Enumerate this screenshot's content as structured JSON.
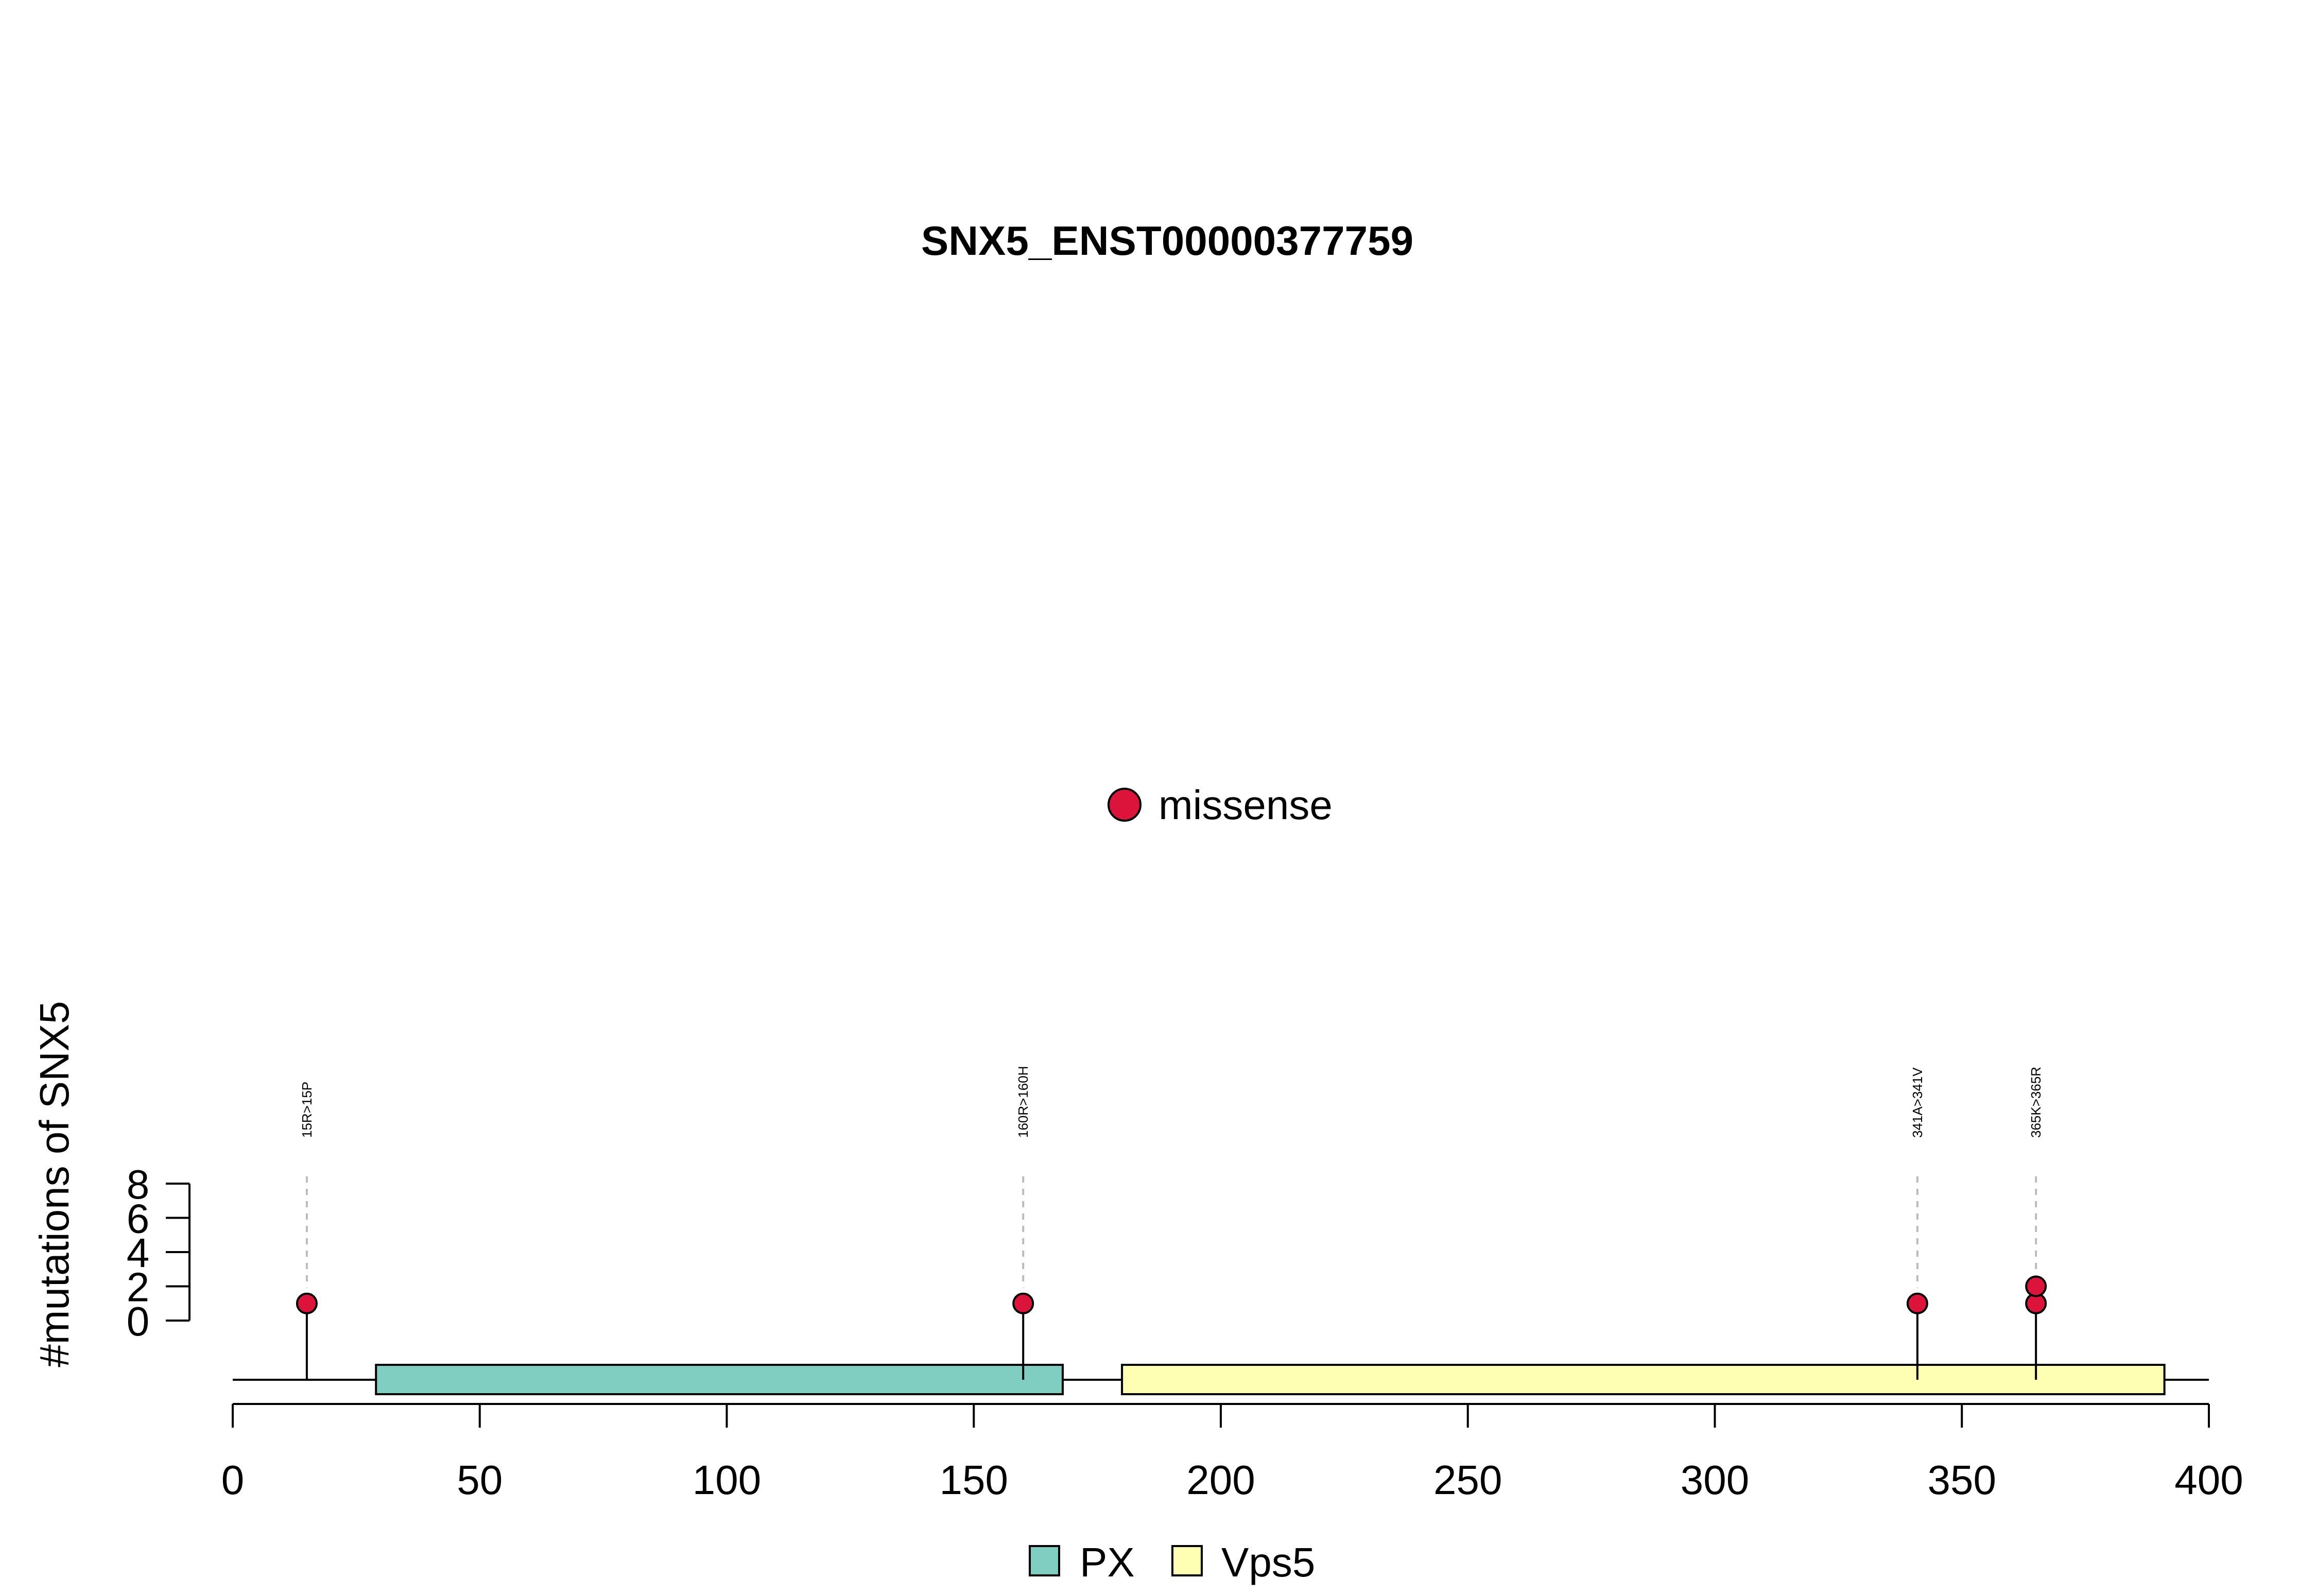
{
  "chart_data": {
    "type": "lollipop",
    "title": "SNX5_ENST00000377759",
    "ylabel": "#mutations of SNX5",
    "xlabel": "",
    "xlim": [
      0,
      400
    ],
    "x_ticks": [
      0,
      50,
      100,
      150,
      200,
      250,
      300,
      350,
      400
    ],
    "y_ticks": [
      0,
      2,
      4,
      6,
      8
    ],
    "protein_length": 400,
    "mutation_legend": [
      {
        "label": "missense",
        "color": "#DC143C"
      }
    ],
    "domains": [
      {
        "name": "PX",
        "start": 29,
        "end": 168,
        "color": "#80CDC1"
      },
      {
        "name": "Vps5",
        "start": 180,
        "end": 391,
        "color": "#FFFFB3"
      }
    ],
    "mutations": [
      {
        "position": 15,
        "label": "15R>15P",
        "count": 1,
        "type": "missense"
      },
      {
        "position": 160,
        "label": "160R>160H",
        "count": 1,
        "type": "missense"
      },
      {
        "position": 341,
        "label": "341A>341V",
        "count": 1,
        "type": "missense"
      },
      {
        "position": 365,
        "label": "365K>365R",
        "count": 2,
        "type": "missense"
      }
    ]
  }
}
